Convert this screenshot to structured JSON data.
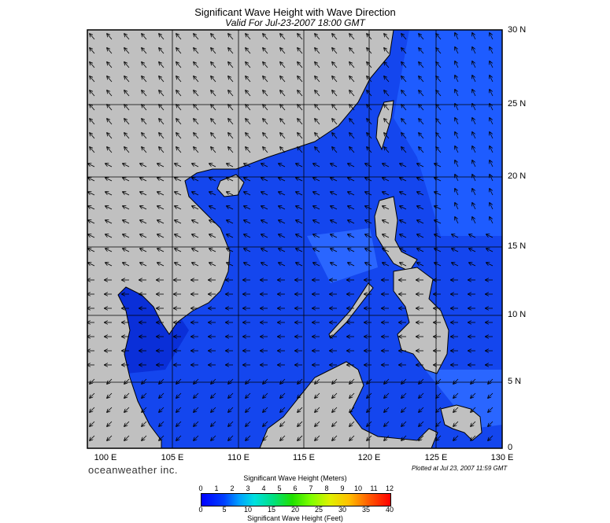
{
  "title": "Significant Wave Height with Wave Direction",
  "subtitle": "Valid For Jul-23-2007 18:00 GMT",
  "brand": "oceanweather inc.",
  "plotted": "Plotted at Jul 23, 2007 11:59 GMT",
  "lat_labels": [
    "30 N",
    "25 N",
    "20 N",
    "15 N",
    "10 N",
    "5 N",
    "0"
  ],
  "lon_labels": [
    "100 E",
    "105 E",
    "110 E",
    "115 E",
    "120 E",
    "125 E",
    "130 E"
  ],
  "colorbar": {
    "title_top": "Significant Wave Height (Meters)",
    "title_bottom": "Significant Wave Height (Feet)",
    "meters": [
      "0",
      "1",
      "2",
      "3",
      "4",
      "5",
      "6",
      "7",
      "8",
      "9",
      "10",
      "11",
      "12"
    ],
    "feet": [
      "0",
      "5",
      "10",
      "15",
      "20",
      "25",
      "30",
      "35",
      "40"
    ]
  },
  "colors": {
    "land": "#c0c0c0",
    "sea_deep": "#0a2fd8",
    "sea_mid": "#1446ee",
    "sea_light": "#1e5cff",
    "sea_dark": "#0000a0"
  }
}
